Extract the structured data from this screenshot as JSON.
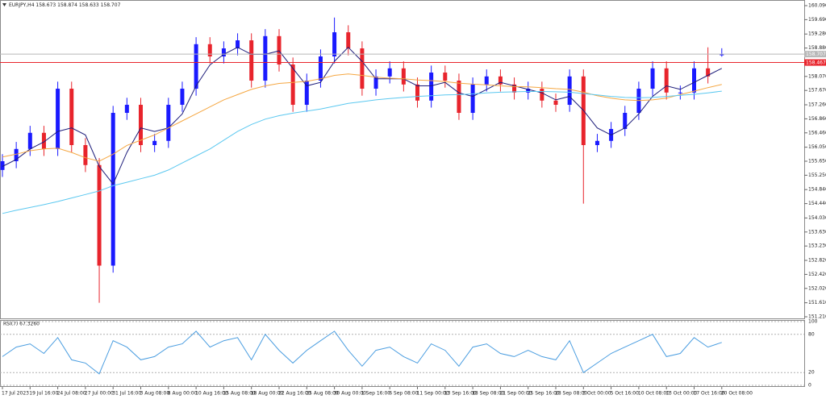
{
  "chart_data": [
    {
      "type": "candlestick",
      "title": "EURJPY,H4 158.673 158.874 158.633 158.707",
      "categories": [
        "17 Jul 2023",
        null,
        "19 Jul 16:00",
        null,
        "24 Jul 08:00",
        null,
        "27 Jul 00:00",
        null,
        "31 Jul 16:00",
        null,
        "3 Aug 08:00",
        null,
        "8 Aug 00:00",
        null,
        "10 Aug 16:00",
        null,
        "15 Aug 08:00",
        null,
        "18 Aug 00:00",
        null,
        "22 Aug 16:00",
        null,
        "25 Aug 08:00",
        null,
        "30 Aug 00:00",
        null,
        "1 Sep 16:00",
        null,
        "6 Sep 08:00",
        null,
        "11 Sep 00:00",
        null,
        "13 Sep 16:00",
        null,
        "18 Sep 08:00",
        null,
        "21 Sep 00:00",
        null,
        "25 Sep 16:00",
        null,
        "28 Sep 08:00",
        null,
        "3 Oct 00:00",
        null,
        "5 Oct 16:00",
        null,
        "10 Oct 08:00",
        null,
        "13 Oct 00:00",
        null,
        "17 Oct 16:00",
        null,
        "20 Oct 08:00"
      ],
      "open": [
        155.4,
        155.65,
        156.0,
        156.46,
        156.0,
        157.72,
        156.11,
        155.54,
        152.67,
        157.03,
        157.26,
        156.11,
        156.23,
        157.26,
        157.72,
        158.99,
        158.64,
        158.87,
        159.1,
        157.95,
        159.22,
        158.41,
        157.26,
        157.95,
        158.64,
        159.33,
        158.87,
        157.72,
        158.07,
        158.3,
        157.84,
        157.38,
        158.18,
        157.95,
        157.03,
        157.84,
        158.07,
        157.84,
        157.61,
        157.72,
        157.38,
        157.26,
        158.07,
        156.11,
        156.23,
        156.57,
        157.03,
        157.72,
        158.3,
        157.61,
        157.61,
        158.3,
        158.673
      ],
      "high": [
        155.85,
        156.2,
        156.66,
        156.66,
        157.92,
        157.92,
        156.31,
        155.74,
        157.23,
        157.46,
        157.46,
        156.43,
        157.46,
        157.92,
        159.19,
        159.19,
        159.07,
        159.3,
        159.3,
        159.42,
        159.42,
        158.61,
        158.15,
        158.84,
        159.75,
        159.53,
        159.07,
        158.27,
        158.5,
        158.5,
        158.04,
        158.38,
        158.38,
        158.15,
        158.04,
        158.27,
        158.27,
        158.04,
        157.92,
        157.92,
        157.58,
        158.27,
        158.27,
        156.43,
        156.77,
        157.23,
        157.92,
        158.5,
        158.5,
        157.81,
        158.5,
        158.9,
        158.874
      ],
      "low": [
        155.2,
        155.45,
        155.8,
        155.8,
        155.8,
        155.91,
        155.34,
        151.61,
        152.47,
        156.83,
        155.91,
        155.91,
        156.03,
        157.06,
        157.52,
        158.44,
        158.44,
        158.67,
        157.75,
        157.75,
        158.21,
        157.06,
        157.06,
        157.75,
        158.44,
        158.67,
        157.52,
        157.52,
        157.87,
        157.64,
        157.18,
        157.18,
        157.75,
        156.83,
        156.83,
        157.64,
        157.64,
        157.41,
        157.41,
        157.18,
        157.06,
        157.06,
        154.44,
        155.91,
        156.03,
        156.37,
        156.83,
        157.52,
        157.41,
        157.41,
        157.41,
        157.87,
        158.633
      ],
      "close": [
        155.65,
        156.0,
        156.46,
        156.0,
        157.72,
        156.11,
        155.54,
        152.67,
        157.03,
        157.26,
        156.11,
        156.23,
        157.26,
        157.72,
        158.99,
        158.64,
        158.87,
        159.1,
        157.95,
        159.22,
        158.41,
        157.26,
        157.95,
        158.64,
        159.33,
        158.87,
        157.72,
        158.07,
        158.3,
        157.84,
        157.38,
        158.18,
        157.95,
        157.03,
        157.84,
        158.07,
        157.84,
        157.61,
        157.72,
        157.38,
        157.26,
        158.07,
        156.11,
        156.23,
        156.57,
        157.03,
        157.72,
        158.3,
        157.61,
        157.61,
        158.3,
        158.07,
        158.707
      ],
      "up_color": "#1a1aff",
      "down_color": "#e8242c",
      "series": [
        {
          "color": "#1c1c7a",
          "values": [
            155.5,
            155.7,
            156.0,
            156.2,
            156.5,
            156.6,
            156.4,
            155.5,
            155.0,
            155.9,
            156.6,
            156.5,
            156.6,
            157.0,
            157.8,
            158.4,
            158.7,
            158.9,
            158.7,
            158.7,
            158.8,
            158.3,
            157.8,
            157.9,
            158.5,
            158.9,
            158.5,
            158.0,
            158.0,
            158.0,
            157.8,
            157.8,
            157.9,
            157.6,
            157.5,
            157.7,
            157.9,
            157.8,
            157.7,
            157.6,
            157.4,
            157.5,
            157.1,
            156.6,
            156.4,
            156.6,
            157.0,
            157.5,
            157.8,
            157.7,
            157.9,
            158.1,
            158.3
          ]
        },
        {
          "color": "#f5a742",
          "values": [
            155.77,
            155.85,
            155.95,
            156.0,
            156.02,
            155.9,
            155.75,
            155.65,
            155.85,
            156.1,
            156.25,
            156.4,
            156.6,
            156.8,
            157.0,
            157.2,
            157.4,
            157.55,
            157.7,
            157.8,
            157.87,
            157.9,
            157.93,
            158.0,
            158.1,
            158.14,
            158.1,
            158.05,
            158.02,
            158.0,
            157.97,
            157.95,
            157.92,
            157.88,
            157.85,
            157.83,
            157.8,
            157.78,
            157.77,
            157.75,
            157.72,
            157.7,
            157.62,
            157.52,
            157.45,
            157.4,
            157.38,
            157.4,
            157.45,
            157.55,
            157.65,
            157.75,
            157.84
          ]
        },
        {
          "color": "#5bc8f0",
          "values": [
            154.16,
            154.25,
            154.33,
            154.41,
            154.5,
            154.6,
            154.7,
            154.8,
            154.95,
            155.05,
            155.15,
            155.25,
            155.4,
            155.6,
            155.8,
            156.0,
            156.25,
            156.5,
            156.7,
            156.85,
            156.95,
            157.02,
            157.08,
            157.14,
            157.22,
            157.3,
            157.35,
            157.4,
            157.44,
            157.47,
            157.5,
            157.52,
            157.54,
            157.55,
            157.57,
            157.6,
            157.62,
            157.63,
            157.64,
            157.64,
            157.63,
            157.62,
            157.58,
            157.54,
            157.5,
            157.47,
            157.46,
            157.47,
            157.5,
            157.53,
            157.56,
            157.6,
            157.65
          ]
        }
      ],
      "price_lines": [
        {
          "value": 158.707,
          "color": "#b8b8b8"
        },
        {
          "value": 158.467,
          "color": "#e8242c"
        }
      ],
      "ylim": [
        151.164,
        160.251
      ],
      "yticks": [
        {
          "value": 160.09,
          "label": "160.090"
        },
        {
          "value": 159.69,
          "label": "159.690"
        },
        {
          "value": 159.28,
          "label": "159.280"
        },
        {
          "value": 158.88,
          "label": "158.880"
        },
        {
          "value": 158.07,
          "label": "158.070"
        },
        {
          "value": 157.67,
          "label": "157.670"
        },
        {
          "value": 157.26,
          "label": "157.260"
        },
        {
          "value": 156.86,
          "label": "156.860"
        },
        {
          "value": 156.46,
          "label": "156.460"
        },
        {
          "value": 156.05,
          "label": "156.050"
        },
        {
          "value": 155.65,
          "label": "155.650"
        },
        {
          "value": 155.25,
          "label": "155.250"
        },
        {
          "value": 154.84,
          "label": "154.840"
        },
        {
          "value": 154.44,
          "label": "154.440"
        },
        {
          "value": 154.03,
          "label": "154.030"
        },
        {
          "value": 153.63,
          "label": "153.630"
        },
        {
          "value": 153.23,
          "label": "153.230"
        },
        {
          "value": 152.82,
          "label": "152.820"
        },
        {
          "value": 152.42,
          "label": "152.420"
        },
        {
          "value": 152.02,
          "label": "152.020"
        },
        {
          "value": 151.61,
          "label": "151.610"
        },
        {
          "value": 151.21,
          "label": "151.210"
        }
      ]
    },
    {
      "type": "line",
      "title": "RSI(7) 67.3260",
      "color": "#4a9de0",
      "values": [
        45,
        60,
        65,
        50,
        75,
        40,
        35,
        18,
        70,
        60,
        40,
        45,
        60,
        65,
        85,
        60,
        70,
        75,
        40,
        80,
        55,
        35,
        55,
        70,
        85,
        55,
        30,
        55,
        60,
        45,
        35,
        65,
        55,
        30,
        60,
        65,
        50,
        45,
        55,
        45,
        40,
        70,
        20,
        35,
        50,
        60,
        70,
        80,
        45,
        50,
        75,
        60,
        67.326
      ],
      "ylim": [
        0,
        100
      ],
      "yticks": [
        0,
        20,
        80,
        100
      ],
      "grid": true
    }
  ]
}
